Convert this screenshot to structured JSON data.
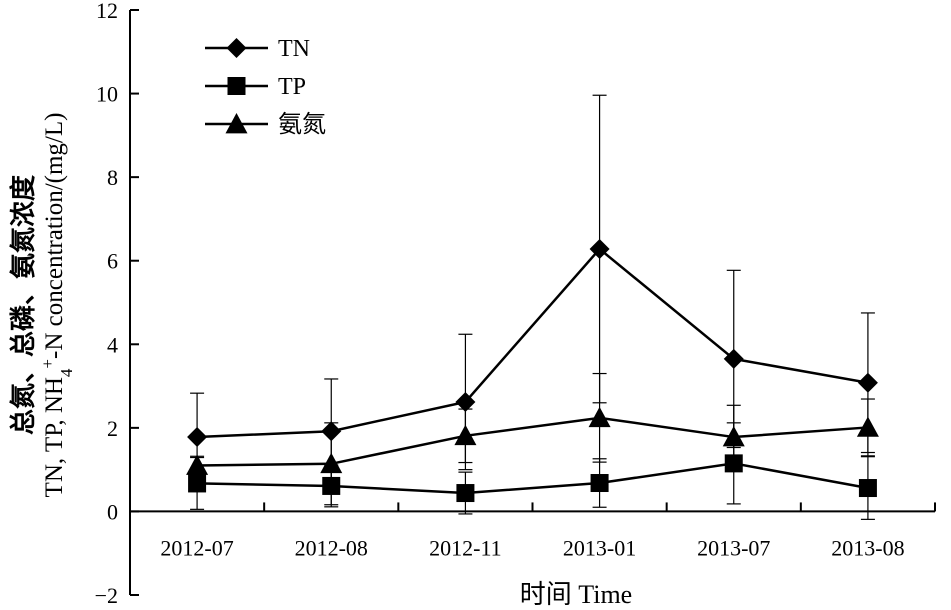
{
  "chart_data": {
    "type": "line",
    "categories": [
      "2012-07",
      "2012-08",
      "2012-11",
      "2013-01",
      "2013-07",
      "2013-08"
    ],
    "ylim": [
      -2,
      12
    ],
    "yticks": [
      -2,
      0,
      2,
      4,
      6,
      8,
      10,
      12
    ],
    "xlabel": "时间 Time",
    "ylabel": {
      "line1": "总氮、总磷、氨氮浓度",
      "line2_prefix": "TN, TP, NH",
      "line2_sub": "4",
      "line2_sup": "+",
      "line2_suffix": "-N concentration/(mg/L)"
    },
    "grid": false,
    "legend_position": "top-left",
    "series": [
      {
        "name": "TN",
        "marker": "diamond",
        "values": [
          1.78,
          1.92,
          2.62,
          6.28,
          3.65,
          3.08
        ],
        "error": [
          1.05,
          1.25,
          1.62,
          3.68,
          2.12,
          1.67
        ]
      },
      {
        "name": "TP",
        "marker": "square",
        "values": [
          0.67,
          0.61,
          0.44,
          0.68,
          1.15,
          0.56
        ],
        "error": [
          0.62,
          0.5,
          0.5,
          0.58,
          0.97,
          0.75
        ]
      },
      {
        "name": "氨氮",
        "marker": "triangle",
        "values": [
          1.1,
          1.14,
          1.81,
          2.24,
          1.78,
          2.01
        ],
        "error": [
          0.22,
          0.98,
          0.64,
          1.06,
          0.76,
          0.68
        ]
      }
    ]
  }
}
